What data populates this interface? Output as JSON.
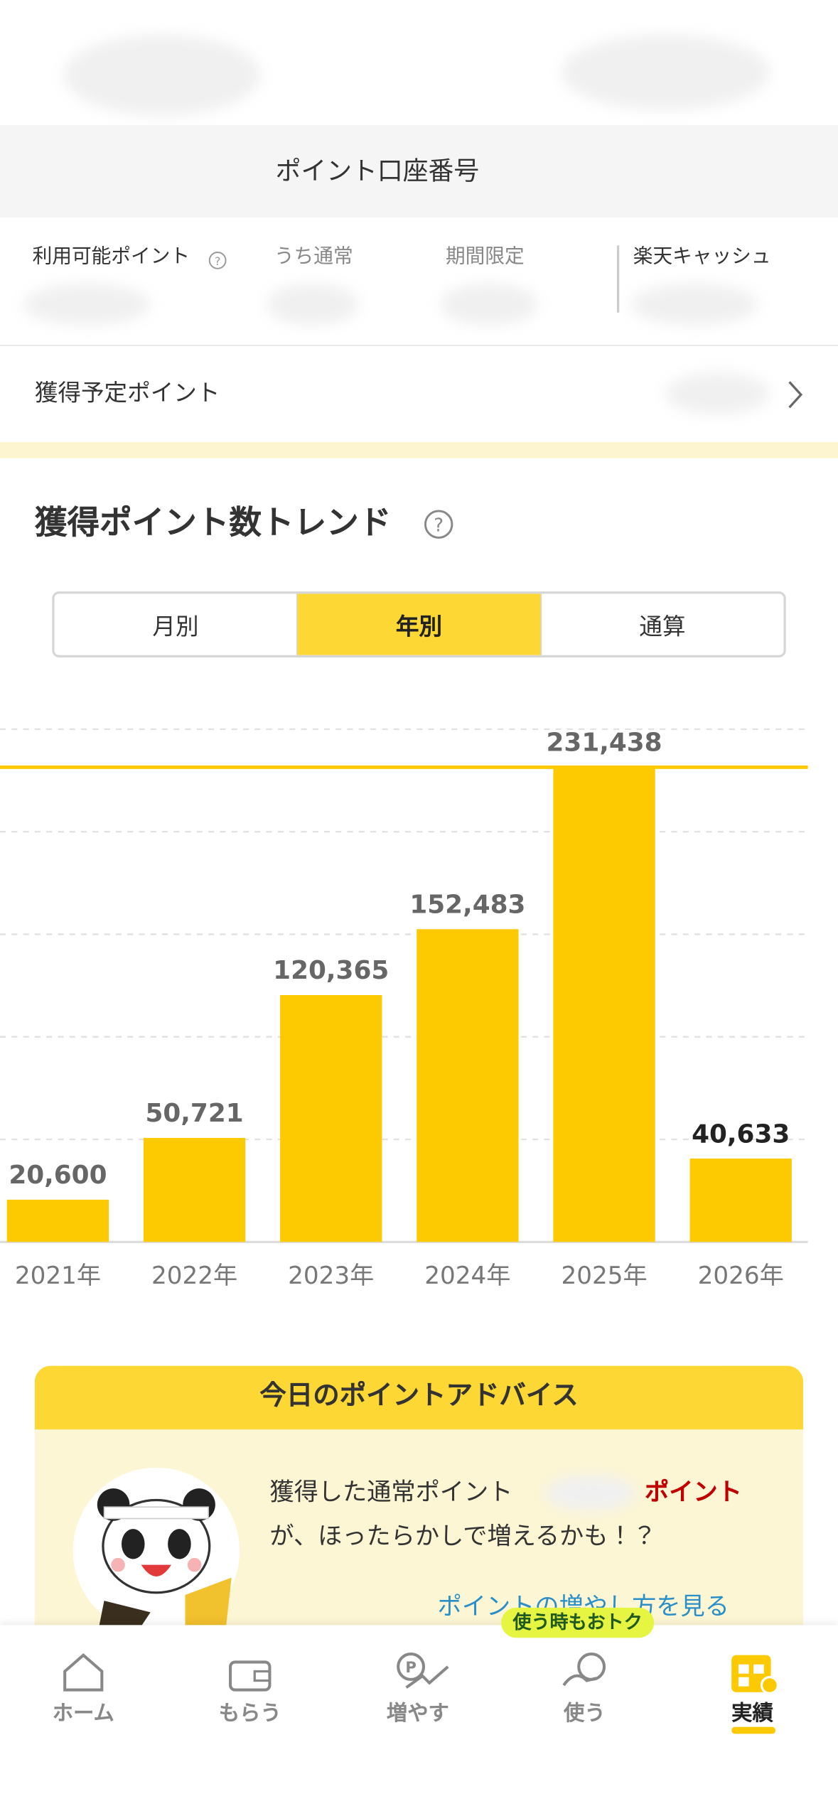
{
  "header": {
    "account_label": "ポイント口座番号"
  },
  "balances": {
    "available": "利用可能ポイント",
    "regular": "うち通常",
    "limited": "期間限定",
    "cash": "楽天キャッシュ"
  },
  "pending": {
    "label": "獲得予定ポイント"
  },
  "tabs": {
    "items": [
      "月別",
      "年別",
      "通算"
    ],
    "active": 1
  },
  "chart_data": {
    "type": "bar",
    "title": "獲得ポイント数トレンド",
    "categories": [
      "2021年",
      "2022年",
      "2023年",
      "2024年",
      "2025年",
      "2026年"
    ],
    "values": [
      20600,
      50721,
      120365,
      152483,
      231438,
      40633
    ],
    "value_labels": [
      "20,600",
      "50,721",
      "120,365",
      "152,483",
      "231,438",
      "40,633"
    ],
    "color": "#fdc900",
    "max_line": 231438,
    "ylim": [
      0,
      250000
    ],
    "yticks": [
      0,
      50000,
      100000,
      150000,
      200000,
      250000
    ],
    "grid": true
  },
  "advice": {
    "title": "今日のポイントアドバイス",
    "line1": "獲得した通常ポイント",
    "highlight": "ポイント",
    "line2": "が、ほったらかしで増えるかも！？",
    "link": "ポイントの増やし方を見る"
  },
  "nav": {
    "badge": "使う時もおトク",
    "items": [
      "ホーム",
      "もらう",
      "増やす",
      "使う",
      "実績"
    ],
    "active": 4
  }
}
